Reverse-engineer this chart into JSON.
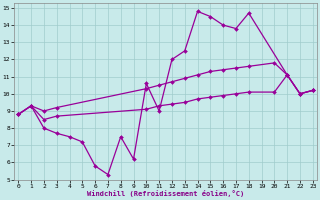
{
  "bg_color": "#c8eaea",
  "grid_color": "#a0cccc",
  "line_color": "#990099",
  "xlim": [
    0,
    23
  ],
  "ylim": [
    5,
    15
  ],
  "xticks": [
    0,
    1,
    2,
    3,
    4,
    5,
    6,
    7,
    8,
    9,
    10,
    11,
    12,
    13,
    14,
    15,
    16,
    17,
    18,
    19,
    20,
    21,
    22,
    23
  ],
  "yticks": [
    5,
    6,
    7,
    8,
    9,
    10,
    11,
    12,
    13,
    14,
    15
  ],
  "xlabel": "Windchill (Refroidissement éolien,°C)",
  "line1_x": [
    0,
    1,
    2,
    3,
    4,
    5,
    6,
    7,
    8,
    9,
    10,
    11,
    12,
    13,
    14,
    15,
    16,
    17,
    18,
    21,
    22,
    23
  ],
  "line1_y": [
    8.8,
    9.3,
    8.0,
    7.7,
    7.5,
    7.2,
    5.8,
    5.3,
    7.5,
    6.2,
    10.6,
    9.0,
    12.0,
    12.5,
    14.8,
    14.5,
    14.0,
    13.8,
    14.7,
    11.1,
    10.0,
    10.2
  ],
  "line2_x": [
    0,
    1,
    2,
    3,
    10,
    11,
    12,
    13,
    14,
    15,
    16,
    17,
    18,
    20,
    21,
    22,
    23
  ],
  "line2_y": [
    8.8,
    9.3,
    9.0,
    9.2,
    10.3,
    10.5,
    10.7,
    10.9,
    11.1,
    11.3,
    11.4,
    11.5,
    11.6,
    11.8,
    11.1,
    10.0,
    10.2
  ],
  "line3_x": [
    0,
    1,
    2,
    3,
    10,
    11,
    12,
    13,
    14,
    15,
    16,
    17,
    18,
    20,
    21,
    22,
    23
  ],
  "line3_y": [
    8.8,
    9.3,
    8.5,
    8.7,
    9.1,
    9.3,
    9.4,
    9.5,
    9.7,
    9.8,
    9.9,
    10.0,
    10.1,
    10.1,
    11.1,
    10.0,
    10.2
  ]
}
